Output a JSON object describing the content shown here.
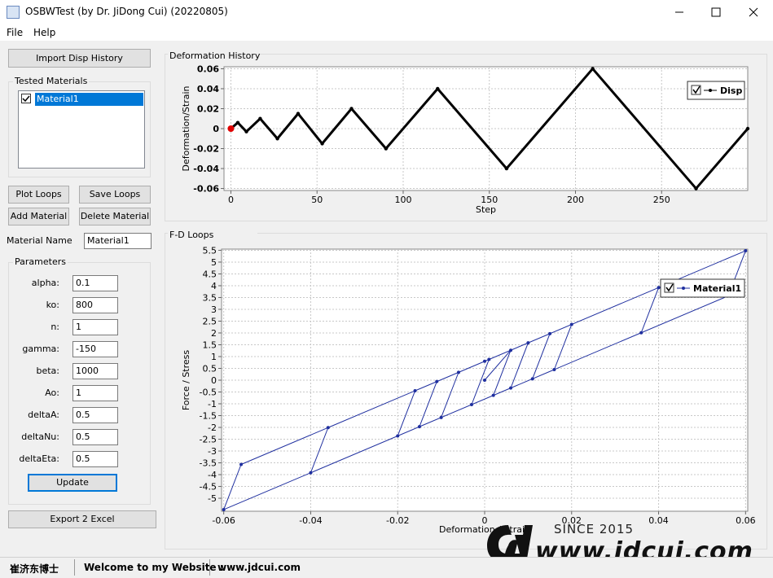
{
  "window": {
    "title": "OSBWTest (by Dr. JiDong Cui) (20220805)",
    "menu": [
      "File",
      "Help"
    ]
  },
  "left_panel": {
    "import_button": "Import Disp History",
    "tested_materials": {
      "title": "Tested Materials",
      "items": [
        "Material1"
      ]
    },
    "buttons": [
      "Plot Loops",
      "Save Loops",
      "Add Material",
      "Delete Material"
    ],
    "material_name": {
      "label": "Material Name",
      "value": "Material1"
    },
    "parameters": {
      "title": "Parameters",
      "rows": [
        [
          "alpha:",
          "0.1"
        ],
        [
          "ko:",
          "800"
        ],
        [
          "n:",
          "1"
        ],
        [
          "gamma:",
          "-150"
        ],
        [
          "beta:",
          "1000"
        ],
        [
          "Ao:",
          "1"
        ],
        [
          "deltaA:",
          "0.5"
        ],
        [
          "deltaNu:",
          "0.5"
        ],
        [
          "deltaEta:",
          "0.5"
        ]
      ]
    },
    "update_button": "Update",
    "export_button": "Export 2 Excel"
  },
  "chart_data": [
    {
      "type": "line",
      "title": "Deformation History",
      "x_label": "Step",
      "y_label": "Deformation/Strain",
      "x": [
        0,
        4,
        9,
        17,
        27,
        39,
        53,
        70,
        90,
        120,
        160,
        210,
        270,
        300
      ],
      "series": [
        {
          "name": "Disp",
          "color": "#000000",
          "values": [
            0,
            0.006,
            -0.003,
            0.01,
            -0.01,
            0.015,
            -0.015,
            0.02,
            -0.02,
            0.04,
            -0.04,
            0.06,
            -0.06,
            0
          ]
        }
      ],
      "highlight": {
        "x": 0,
        "y": 0,
        "color": "#e00000"
      },
      "xlim": [
        -4,
        300
      ],
      "ylim": [
        -0.062,
        0.062
      ],
      "xticks": [
        0,
        50,
        100,
        150,
        200,
        250
      ],
      "yticks": [
        -0.06,
        -0.04,
        -0.02,
        0,
        0.02,
        0.04,
        0.06
      ],
      "grid": true,
      "legend": "top-right"
    },
    {
      "type": "line",
      "title": "F-D Loops",
      "x_label": "Deformation / Strain",
      "y_label": "Force / Stress",
      "x": [
        0,
        0.006,
        0.002,
        -0.003,
        0.001,
        0.01,
        0.006,
        -0.01,
        -0.006,
        0.015,
        0.011,
        -0.015,
        -0.011,
        0.02,
        0.016,
        -0.02,
        -0.016,
        0.04,
        0.036,
        -0.04,
        -0.036,
        0.06,
        0.056,
        -0.06,
        -0.056,
        0
      ],
      "series": [
        {
          "name": "Material1",
          "color": "#1f2f9f",
          "values": [
            0,
            1.268,
            -0.644,
            -1.034,
            0.878,
            1.58,
            -0.332,
            -1.58,
            0.332,
            1.97,
            0.058,
            -1.97,
            -0.058,
            2.36,
            0.448,
            -2.36,
            -0.448,
            3.92,
            2.008,
            -3.92,
            -2.008,
            5.48,
            3.568,
            -5.48,
            -3.568,
            0.8
          ]
        }
      ],
      "xlim": [
        -0.0605,
        0.0605
      ],
      "ylim": [
        -5.55,
        5.55
      ],
      "xticks": [
        -0.06,
        -0.04,
        -0.02,
        0,
        0.02,
        0.04,
        0.06
      ],
      "yticks": [
        -5,
        -4.5,
        -4,
        -3.5,
        -3,
        -2.5,
        -2,
        -1.5,
        -1,
        -0.5,
        0,
        0.5,
        1,
        1.5,
        2,
        2.5,
        3,
        3.5,
        4,
        4.5,
        5,
        5.5
      ],
      "grid": true,
      "legend": "top-right"
    }
  ],
  "status_bar": [
    "崔济东博士",
    "Welcome to my Website :",
    "www.jdcui.com"
  ],
  "watermark": {
    "since": "SINCE 2015",
    "url": "www.jdcui.com"
  }
}
